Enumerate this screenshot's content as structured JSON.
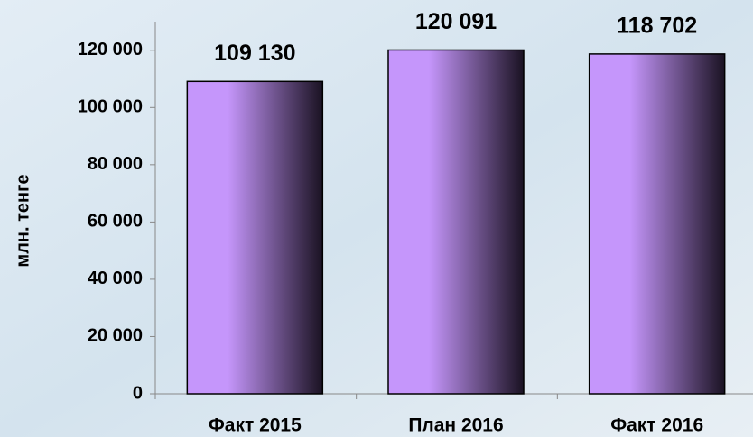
{
  "chart_data": {
    "type": "bar",
    "categories": [
      "Факт 2015",
      "План 2016",
      "Факт 2016"
    ],
    "values": [
      109130,
      120091,
      118702
    ],
    "value_labels": [
      "109 130",
      "120 091",
      "118 702"
    ],
    "ylabel": "млн. тенге",
    "ylim": [
      0,
      130000
    ],
    "yticks": [
      0,
      {
        "value": 20000,
        "label": "20 000"
      },
      {
        "value": 40000,
        "label": "40 000"
      },
      {
        "value": 60000,
        "label": "60 000"
      },
      {
        "value": 80000,
        "label": "80 000"
      },
      {
        "value": 100000,
        "label": "100 000"
      },
      {
        "value": 120000,
        "label": "120 000"
      }
    ],
    "color": [
      "#c596fb",
      "#1a1222"
    ],
    "grid": false
  }
}
